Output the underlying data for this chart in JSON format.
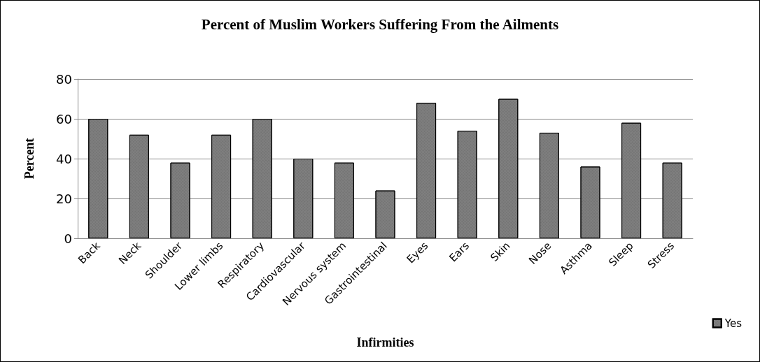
{
  "chart_data": {
    "type": "bar",
    "title": "Percent of Muslim Workers Suffering From the Ailments",
    "xlabel": "Infirmities",
    "ylabel": "Percent",
    "categories": [
      "Back",
      "Neck",
      "Shoulder",
      "Lower limbs",
      "Respiratory",
      "Cardiovascular",
      "Nervous system",
      "Gastrointestinal",
      "Eyes",
      "Ears",
      "Skin",
      "Nose",
      "Asthma",
      "Sleep",
      "Stress"
    ],
    "series": [
      {
        "name": "Yes",
        "color": "#808080",
        "values": [
          60,
          52,
          38,
          52,
          60,
          40,
          38,
          24,
          68,
          54,
          70,
          53,
          36,
          58,
          38
        ]
      }
    ],
    "ylim": [
      0,
      80
    ],
    "yticks": [
      0,
      20,
      40,
      60,
      80
    ],
    "grid": "y",
    "legend": "bottom right"
  }
}
